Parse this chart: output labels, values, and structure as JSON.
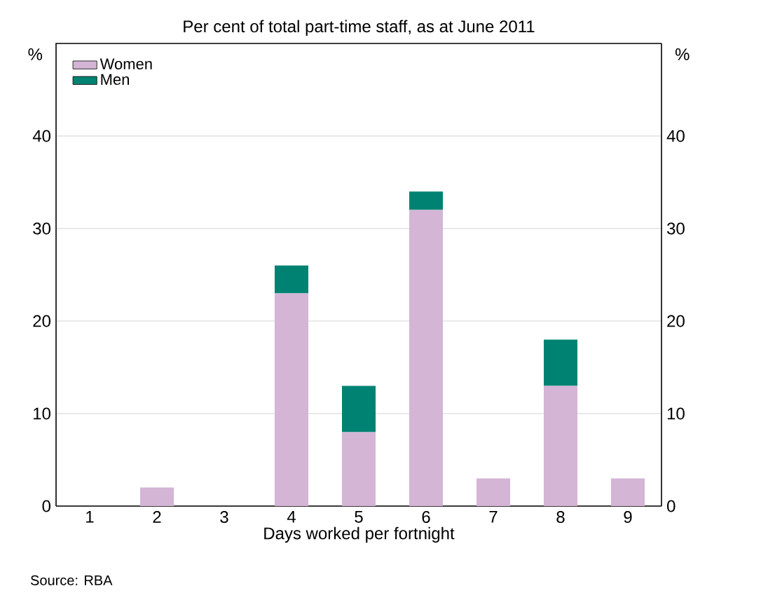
{
  "chart_data": {
    "type": "bar",
    "title": "Per cent of total part-time staff, as at June 2011",
    "xlabel": "Days worked per fortnight",
    "ylabel": "%",
    "y2label": "%",
    "categories": [
      "1",
      "2",
      "3",
      "4",
      "5",
      "6",
      "7",
      "8",
      "9"
    ],
    "series": [
      {
        "name": "Women",
        "color": "#d4b5d6",
        "values": [
          0,
          2,
          0,
          23,
          8,
          32,
          3,
          13,
          3
        ]
      },
      {
        "name": "Men",
        "color": "#008272",
        "values": [
          0,
          0,
          0,
          3,
          5,
          2,
          0,
          5,
          0
        ]
      }
    ],
    "stacked": true,
    "ylim": [
      0,
      50
    ],
    "yticks": [
      0,
      10,
      20,
      30,
      40
    ],
    "y2lim": [
      0,
      50
    ],
    "y2ticks": [
      0,
      10,
      20,
      30,
      40
    ],
    "grid": "y",
    "legend": "top left",
    "annotations": [
      "Source: RBA"
    ]
  }
}
